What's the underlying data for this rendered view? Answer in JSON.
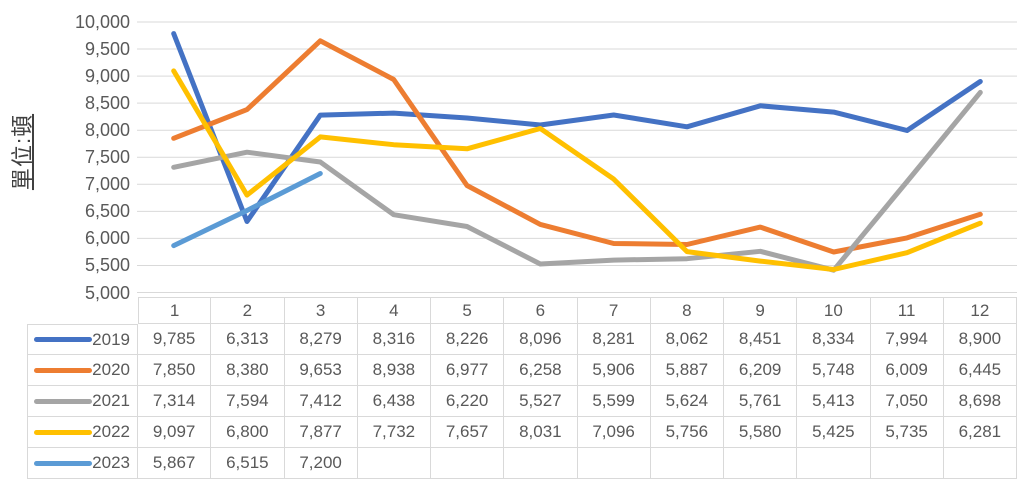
{
  "y_axis": {
    "title": "單位:頓",
    "labels": [
      "10,000",
      "9,500",
      "9,000",
      "8,500",
      "8,000",
      "7,500",
      "7,000",
      "6,500",
      "6,000",
      "5,500",
      "5,000"
    ]
  },
  "table": {
    "month_headers": [
      "1",
      "2",
      "3",
      "4",
      "5",
      "6",
      "7",
      "8",
      "9",
      "10",
      "11",
      "12"
    ],
    "rows": [
      {
        "year": "2019",
        "color": "#4472C4",
        "values": [
          "9,785",
          "6,313",
          "8,279",
          "8,316",
          "8,226",
          "8,096",
          "8,281",
          "8,062",
          "8,451",
          "8,334",
          "7,994",
          "8,900"
        ]
      },
      {
        "year": "2020",
        "color": "#ED7D31",
        "values": [
          "7,850",
          "8,380",
          "9,653",
          "8,938",
          "6,977",
          "6,258",
          "5,906",
          "5,887",
          "6,209",
          "5,748",
          "6,009",
          "6,445"
        ]
      },
      {
        "year": "2021",
        "color": "#A5A5A5",
        "values": [
          "7,314",
          "7,594",
          "7,412",
          "6,438",
          "6,220",
          "5,527",
          "5,599",
          "5,624",
          "5,761",
          "5,413",
          "7,050",
          "8,698"
        ]
      },
      {
        "year": "2022",
        "color": "#FFC000",
        "values": [
          "9,097",
          "6,800",
          "7,877",
          "7,732",
          "7,657",
          "8,031",
          "7,096",
          "5,756",
          "5,580",
          "5,425",
          "5,735",
          "6,281"
        ]
      },
      {
        "year": "2023",
        "color": "#5B9BD5",
        "values": [
          "5,867",
          "6,515",
          "7,200",
          "",
          "",
          "",
          "",
          "",
          "",
          "",
          "",
          ""
        ]
      }
    ]
  },
  "chart_data": {
    "type": "line",
    "categories": [
      1,
      2,
      3,
      4,
      5,
      6,
      7,
      8,
      9,
      10,
      11,
      12
    ],
    "series": [
      {
        "name": "2019",
        "color": "#4472C4",
        "values": [
          9785,
          6313,
          8279,
          8316,
          8226,
          8096,
          8281,
          8062,
          8451,
          8334,
          7994,
          8900
        ]
      },
      {
        "name": "2020",
        "color": "#ED7D31",
        "values": [
          7850,
          8380,
          9653,
          8938,
          6977,
          6258,
          5906,
          5887,
          6209,
          5748,
          6009,
          6445
        ]
      },
      {
        "name": "2021",
        "color": "#A5A5A5",
        "values": [
          7314,
          7594,
          7412,
          6438,
          6220,
          5527,
          5599,
          5624,
          5761,
          5413,
          7050,
          8698
        ]
      },
      {
        "name": "2022",
        "color": "#FFC000",
        "values": [
          9097,
          6800,
          7877,
          7732,
          7657,
          8031,
          7096,
          5756,
          5580,
          5425,
          5735,
          6281
        ]
      },
      {
        "name": "2023",
        "color": "#5B9BD5",
        "values": [
          5867,
          6515,
          7200,
          null,
          null,
          null,
          null,
          null,
          null,
          null,
          null,
          null
        ]
      }
    ],
    "title": "",
    "xlabel": "",
    "ylabel": "單位:頓",
    "ylim": [
      5000,
      10000
    ],
    "ytick_step": 500,
    "grid": true,
    "legend_position": "table-left-column"
  },
  "colors": {
    "gridline": "#D9D9D9",
    "table_border": "#D9D9D9",
    "text": "#595959",
    "axis_title_text": "#404040"
  }
}
